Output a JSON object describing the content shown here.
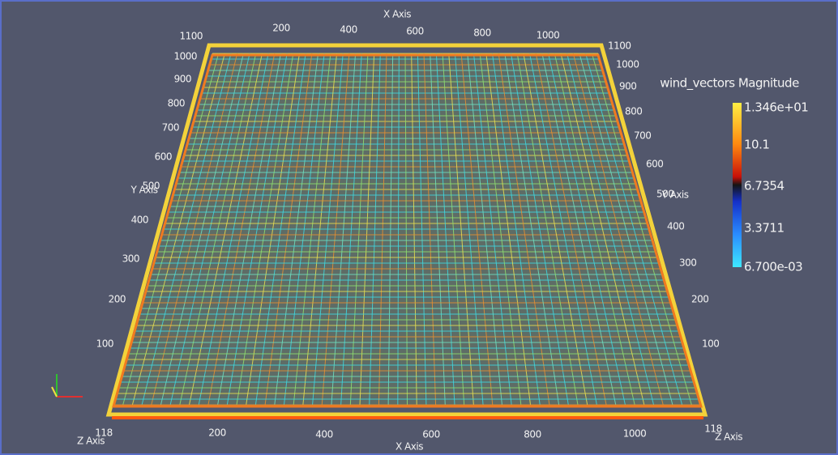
{
  "top_x_axis": {
    "title": "X Axis",
    "ticks": [
      "200",
      "400",
      "600",
      "800",
      "1000"
    ]
  },
  "left_y_axis": {
    "title": "Y Axis",
    "ticks": [
      "1100",
      "1000",
      "900",
      "800",
      "700",
      "600",
      "500",
      "400",
      "300",
      "200",
      "100"
    ]
  },
  "right_y_axis": {
    "title": "Y Axis",
    "ticks": [
      "1100",
      "1000",
      "900",
      "800",
      "700",
      "600",
      "500",
      "400",
      "300",
      "200",
      "100"
    ]
  },
  "bottom_x_axis": {
    "title": "X Axis",
    "ticks": [
      "200",
      "400",
      "600",
      "800",
      "1000"
    ]
  },
  "z_axis_left": {
    "title": "Z Axis",
    "tick": "118"
  },
  "z_axis_right": {
    "title": "Z Axis",
    "tick": "118"
  },
  "legend": {
    "title": "wind_vectors Magnitude",
    "labels": [
      "1.346e+01",
      "10.1",
      "6.7354",
      "3.3711",
      "6.700e-03"
    ]
  }
}
